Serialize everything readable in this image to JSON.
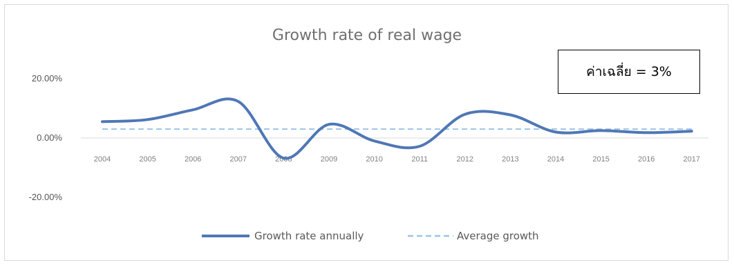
{
  "chart_data": {
    "type": "line",
    "title": "Growth rate of real wage",
    "categories": [
      "2004",
      "2005",
      "2006",
      "2007",
      "2008",
      "2009",
      "2010",
      "2011",
      "2012",
      "2013",
      "2014",
      "2015",
      "2016",
      "2017"
    ],
    "series": [
      {
        "name": "Growth rate annually",
        "values": [
          5.5,
          6.2,
          9.5,
          12.3,
          -6.8,
          4.6,
          -1.0,
          -2.8,
          8.0,
          7.8,
          2.0,
          2.5,
          1.8,
          2.3
        ],
        "color": "#4f77b5",
        "style": "solid"
      },
      {
        "name": "Average growth",
        "values": [
          3,
          3,
          3,
          3,
          3,
          3,
          3,
          3,
          3,
          3,
          3,
          3,
          3,
          3
        ],
        "color": "#9dc3e6",
        "style": "dashed"
      }
    ],
    "y_ticks": [
      "20.00%",
      "0.00%",
      "-20.00%"
    ],
    "ylim": [
      -20,
      20
    ],
    "grid": false,
    "legend": "bottom",
    "annotation": "ค่าเฉลี่ย = 3%"
  }
}
